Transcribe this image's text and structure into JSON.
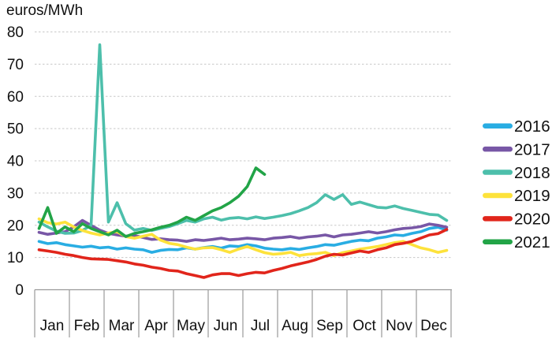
{
  "title": "euros/MWh",
  "chart_data": {
    "type": "line",
    "title": "",
    "ylabel": "euros/MWh",
    "xlabel": "",
    "x_categories": [
      "Jan",
      "Feb",
      "Mar",
      "Apr",
      "May",
      "Jun",
      "Jul",
      "Aug",
      "Sep",
      "Oct",
      "Nov",
      "Dec"
    ],
    "y_ticks": [
      0,
      10,
      20,
      30,
      40,
      50,
      60,
      70,
      80
    ],
    "ylim": [
      0,
      80
    ],
    "grid": "horizontal-dashed",
    "legend_position": "right",
    "points_per_month": 4,
    "axis_color": "#9a9a9a",
    "grid_color": "#c8c8c8",
    "text_color": "#111111",
    "series": [
      {
        "name": "2016",
        "color": "#29ade3",
        "values": [
          15,
          14.3,
          14.6,
          14,
          13.6,
          13.2,
          13.5,
          13,
          13.2,
          12.6,
          13,
          12.6,
          12.4,
          11.6,
          12.2,
          12.5,
          12.4,
          13,
          12.6,
          13.1,
          13.4,
          12.9,
          13.6,
          13.4,
          14,
          13.6,
          12.9,
          12.6,
          12.4,
          12.8,
          12.5,
          13,
          13.4,
          14,
          13.8,
          14.4,
          15,
          15.4,
          15.2,
          16,
          16.4,
          17,
          16.8,
          17.5,
          18,
          19,
          19.4,
          18.5
        ]
      },
      {
        "name": "2017",
        "color": "#7857a6",
        "values": [
          17.8,
          17.2,
          17.6,
          18,
          19.5,
          21.5,
          20,
          18.5,
          17.5,
          17,
          16.6,
          16.8,
          16.2,
          15.6,
          15.8,
          15.5,
          15.4,
          15,
          15.5,
          15.3,
          15.6,
          16,
          15.5,
          15.7,
          16,
          15.8,
          15.5,
          16,
          16.2,
          16.5,
          16,
          16.4,
          16.6,
          17,
          16.4,
          17,
          17.2,
          17.6,
          18,
          17.6,
          18,
          18.6,
          19,
          19.2,
          19.6,
          20.4,
          20,
          19.4
        ]
      },
      {
        "name": "2018",
        "color": "#4dbfab",
        "values": [
          21,
          19.5,
          18.2,
          17.5,
          17.6,
          18.4,
          20,
          76,
          21,
          27,
          20.5,
          18.5,
          19,
          18.4,
          19,
          19.6,
          20.5,
          21.5,
          21,
          22,
          22.5,
          21.6,
          22.2,
          22.4,
          22,
          22.6,
          22.1,
          22.5,
          23,
          23.6,
          24.5,
          25.5,
          27,
          29.5,
          28,
          29.5,
          26.5,
          27.2,
          26.4,
          25.6,
          25.4,
          26,
          25.2,
          24.6,
          24,
          23.4,
          23.2,
          21.5
        ]
      },
      {
        "name": "2019",
        "color": "#fde23b",
        "values": [
          22,
          20.8,
          20.4,
          21,
          19.5,
          18.4,
          17.6,
          17,
          17.6,
          18,
          16.5,
          16,
          16.6,
          17.2,
          15.4,
          14.4,
          14,
          13.2,
          12.6,
          13,
          13.1,
          12.4,
          11.6,
          12.6,
          13.4,
          12.4,
          11.5,
          11,
          11.2,
          11.6,
          10.6,
          11,
          11.2,
          11.6,
          10.6,
          11.5,
          12,
          12.6,
          13,
          13.4,
          14,
          14.6,
          15,
          14,
          13,
          12.4,
          11.6,
          12.2
        ]
      },
      {
        "name": "2020",
        "color": "#e1251b",
        "values": [
          12.4,
          12,
          11.6,
          11,
          10.6,
          10,
          9.6,
          9.5,
          9.4,
          9,
          8.6,
          8,
          7.6,
          7,
          6.6,
          6,
          5.8,
          5,
          4.4,
          3.8,
          4.6,
          5,
          5,
          4.4,
          5,
          5.4,
          5.2,
          6,
          6.6,
          7.4,
          8,
          8.6,
          9.4,
          10.4,
          11,
          10.8,
          11.4,
          12,
          11.6,
          12.4,
          13,
          14,
          14.4,
          15,
          16,
          17,
          17.4,
          18.7
        ]
      },
      {
        "name": "2021",
        "color": "#22a447",
        "values": [
          19,
          25.5,
          17.5,
          19.5,
          18,
          20.5,
          19,
          18,
          17,
          18.5,
          16.5,
          17.5,
          18,
          18.6,
          19.4,
          20,
          21,
          22.5,
          21.5,
          23,
          24.5,
          25.5,
          27,
          29,
          32,
          37.8,
          35.8
        ]
      }
    ],
    "legend": [
      "2016",
      "2017",
      "2018",
      "2019",
      "2020",
      "2021"
    ]
  }
}
